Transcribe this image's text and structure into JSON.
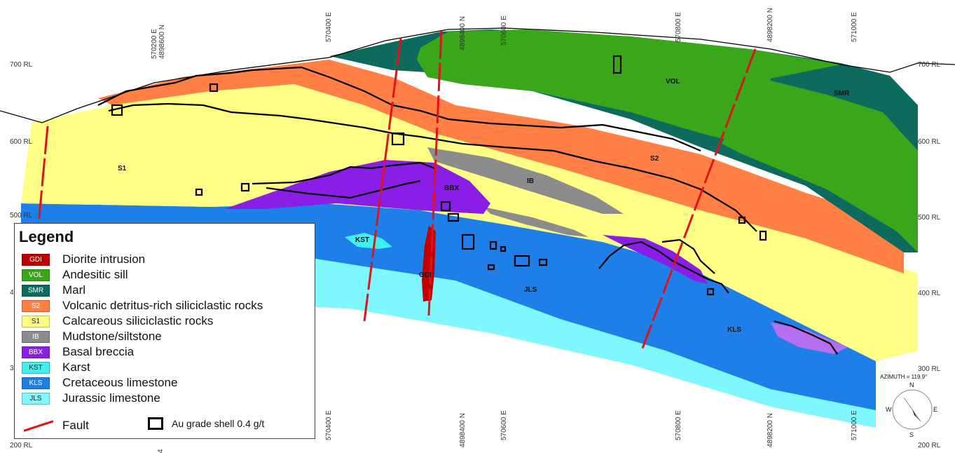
{
  "axes": {
    "rl_left": [
      "700 RL",
      "600 RL",
      "500 RL",
      "200 RL"
    ],
    "rl_right": [
      "700 RL",
      "600 RL",
      "500 RL",
      "400 RL",
      "300 RL",
      "200 RL"
    ],
    "rl_left_fragments": [
      "4",
      "3"
    ],
    "easting_top": [
      "570200 E",
      "570400 E",
      "570600 E",
      "570800 E",
      "571000 E"
    ],
    "northing_top": [
      "4898600 N",
      "4898400 N",
      "4898200 N"
    ],
    "easting_bottom": [
      "570400 E",
      "570600 E",
      "570800 E",
      "571000 E"
    ],
    "northing_bottom": [
      "4898400 N",
      "4898200 N"
    ],
    "bottom_fragment": "4"
  },
  "unit_labels": {
    "vol": "VOL",
    "smr": "SMR",
    "s2": "S2",
    "s1": "S1",
    "ib": "IB",
    "bbx": "BBX",
    "kst": "KST",
    "gdi": "GDI",
    "jls": "JLS",
    "kls": "KLS"
  },
  "legend": {
    "title": "Legend",
    "items": [
      {
        "code": "GDI",
        "label": "Diorite intrusion",
        "color": "#c00000"
      },
      {
        "code": "VOL",
        "label": "Andesitic sill",
        "color": "#3aa61a"
      },
      {
        "code": "SMR",
        "label": "Marl",
        "color": "#0d6b5e"
      },
      {
        "code": "S2",
        "label": "Volcanic detritus-rich siliciclastic rocks",
        "color": "#ff7f45"
      },
      {
        "code": "S1",
        "label": "Calcareous siliciclastic rocks",
        "color": "#ffff85"
      },
      {
        "code": "IB",
        "label": "Mudstone/siltstone",
        "color": "#8c8c8c"
      },
      {
        "code": "BBX",
        "label": "Basal breccia",
        "color": "#8a1ee6"
      },
      {
        "code": "KST",
        "label": "Karst",
        "color": "#40f0f0"
      },
      {
        "code": "KLS",
        "label": "Cretaceous limestone",
        "color": "#1f7fe8"
      },
      {
        "code": "JLS",
        "label": "Jurassic limestone",
        "color": "#7ff7ff"
      }
    ],
    "fault_label": "Fault",
    "shell_label": "Au grade shell 0.4 g/t",
    "fault_color": "#e0131a"
  },
  "compass": {
    "azimuth": "AZIMUTH = 119.9°",
    "n": "N",
    "s": "S",
    "e": "E",
    "w": "W"
  }
}
